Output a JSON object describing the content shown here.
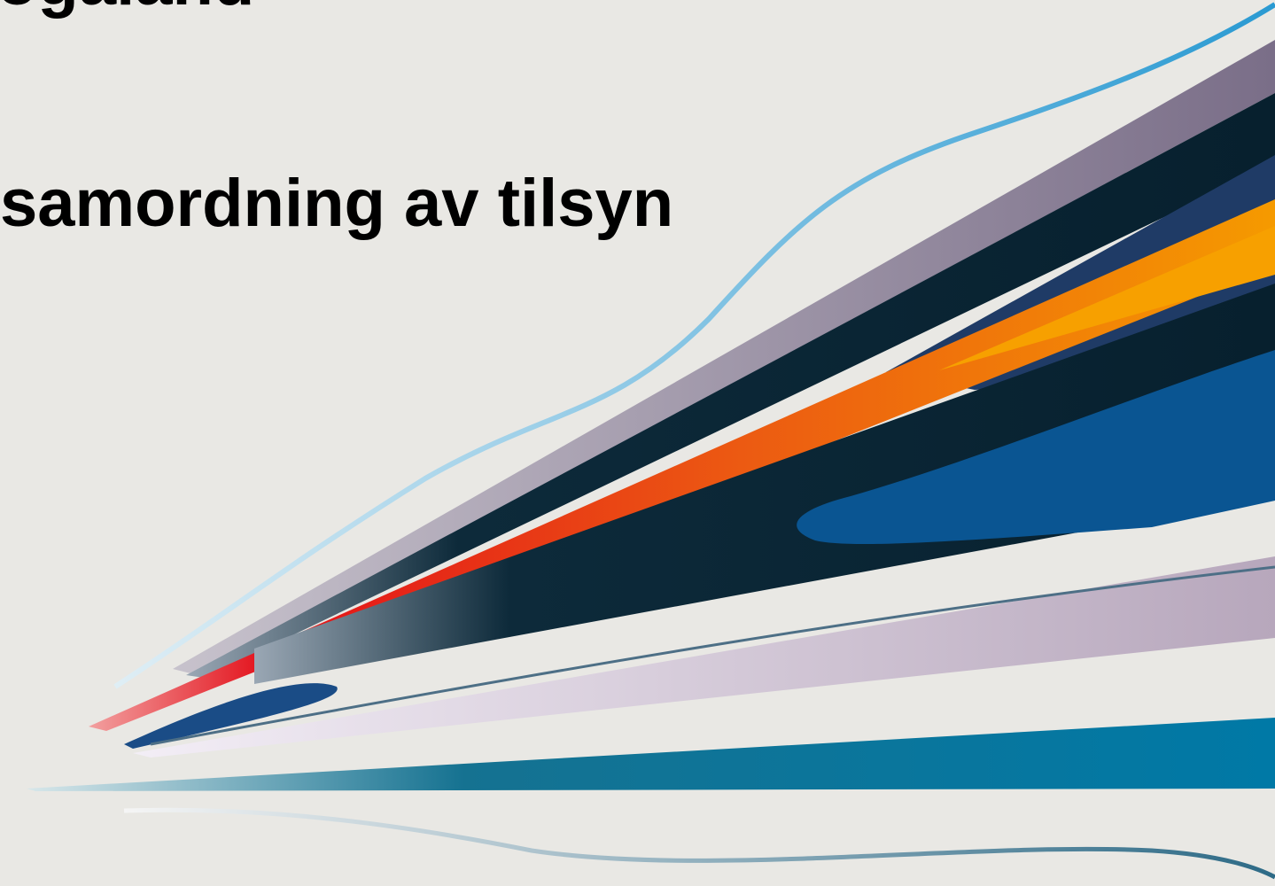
{
  "header": {
    "title": "ogaland",
    "subtitle": "samordning av tilsyn"
  }
}
